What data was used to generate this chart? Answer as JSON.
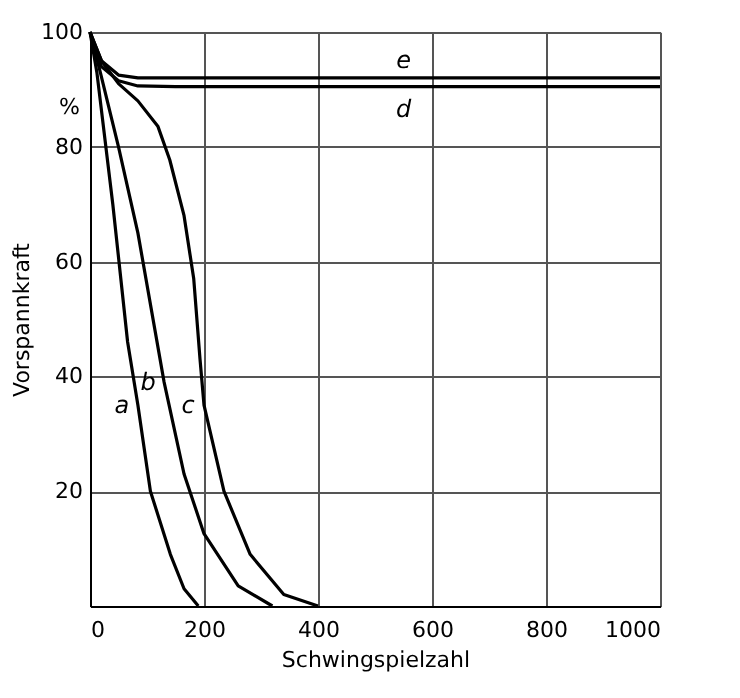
{
  "chart_data": {
    "type": "line",
    "xlabel": "Schwingspielzahl",
    "ylabel": "Vorspannkraft",
    "annotations": [
      "%"
    ],
    "xlim": [
      0,
      1000
    ],
    "ylim": [
      0,
      100
    ],
    "xticks": [
      0,
      200,
      400,
      600,
      800,
      1000
    ],
    "yticks": [
      20,
      40,
      60,
      80,
      100
    ],
    "grid": true,
    "legend": false,
    "line_style": "solid",
    "marker": "none",
    "series": [
      {
        "name": "a",
        "color": "#000000",
        "x": [
          0,
          12,
          40,
          66,
          84,
          106,
          141,
          165,
          190
        ],
        "values": [
          100,
          93,
          70,
          46,
          35,
          20,
          9,
          3,
          0
        ]
      },
      {
        "name": "b",
        "color": "#000000",
        "x": [
          0,
          18,
          50,
          84,
          130,
          165,
          200,
          260,
          320
        ],
        "values": [
          100,
          93,
          80,
          65,
          39,
          23,
          12.6,
          3.5,
          0
        ]
      },
      {
        "name": "c",
        "color": "#000000",
        "x": [
          0,
          20,
          50,
          84,
          119,
          140,
          165,
          182,
          193,
          200,
          235,
          281,
          340,
          400
        ],
        "values": [
          100,
          95,
          91,
          88,
          83.6,
          77.7,
          68,
          57,
          43,
          35,
          20,
          9,
          2,
          0
        ]
      },
      {
        "name": "d",
        "color": "#000000",
        "x": [
          0,
          20,
          50,
          84,
          150,
          1000
        ],
        "values": [
          100,
          94,
          91.5,
          90.6,
          90.5,
          90.5
        ]
      },
      {
        "name": "e",
        "color": "#000000",
        "x": [
          0,
          20,
          50,
          84,
          150,
          1000
        ],
        "values": [
          100,
          95,
          92.5,
          92,
          92,
          92
        ]
      }
    ]
  }
}
